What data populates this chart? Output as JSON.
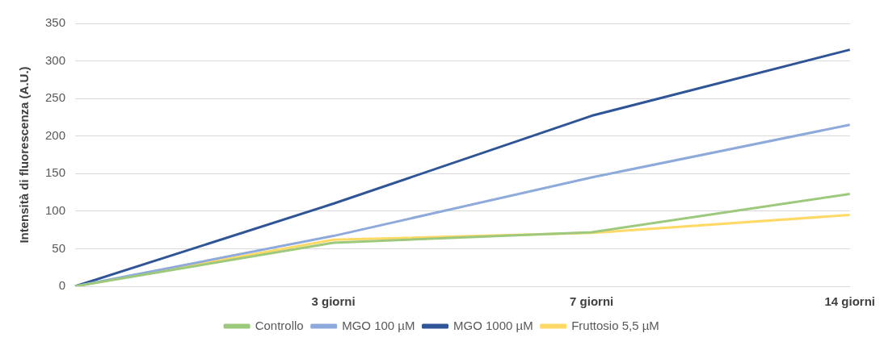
{
  "chart_data": {
    "type": "line",
    "ylabel": "Intensità di fluorescenza (A.U.)",
    "categories": [
      null,
      "3 giorni",
      "7 giorni",
      "14 giorni"
    ],
    "series": [
      {
        "name": "Controllo",
        "color": "#9dc97c",
        "values": [
          0,
          58,
          72,
          123
        ]
      },
      {
        "name": "MGO 100 µM",
        "color": "#8eaadb",
        "values": [
          0,
          67,
          145,
          215
        ]
      },
      {
        "name": "MGO 1000 µM",
        "color": "#2f5597",
        "values": [
          0,
          110,
          227,
          315
        ]
      },
      {
        "name": "Fruttosio 5,5 µM",
        "color": "#ffd966",
        "values": [
          0,
          62,
          71,
          95
        ]
      }
    ],
    "ylim": [
      0,
      350
    ],
    "yticks": [
      0,
      50,
      100,
      150,
      200,
      250,
      300,
      350
    ],
    "grid": "y",
    "legend": "bottom",
    "marker": "none",
    "line_style": "solid"
  }
}
